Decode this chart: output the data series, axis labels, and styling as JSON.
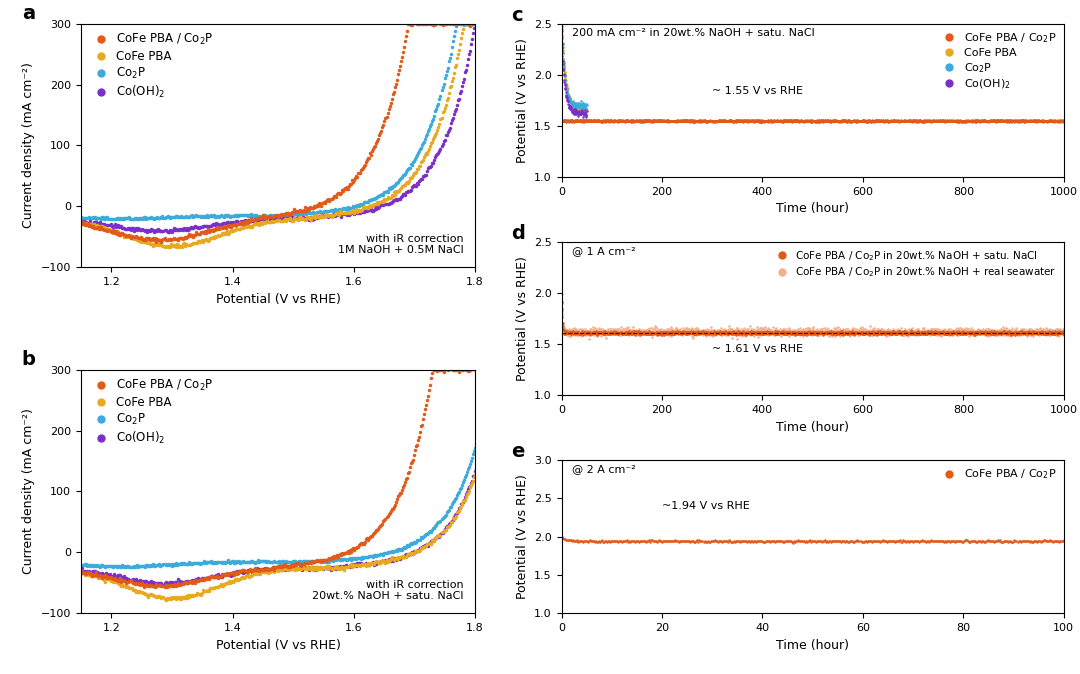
{
  "colors": {
    "cofe_pba_co2p": "#E05A1A",
    "cofe_pba": "#E8A820",
    "co2p": "#3AABDB",
    "co_oh2": "#7B2FC9",
    "cofe_pba_co2p_light": "#F2B090"
  },
  "panel_a": {
    "label": "a",
    "xlabel": "Potential (V vs RHE)",
    "ylabel": "Current density (mA cm⁻²)",
    "xlim": [
      1.15,
      1.8
    ],
    "ylim": [
      -100,
      300
    ],
    "yticks": [
      -100,
      0,
      100,
      200,
      300
    ],
    "xticks": [
      1.2,
      1.4,
      1.6,
      1.8
    ],
    "annotation": "with iR correction\n1M NaOH + 0.5M NaCl"
  },
  "panel_b": {
    "label": "b",
    "xlabel": "Potential (V vs RHE)",
    "ylabel": "Current density (mA cm⁻²)",
    "xlim": [
      1.15,
      1.8
    ],
    "ylim": [
      -100,
      300
    ],
    "yticks": [
      -100,
      0,
      100,
      200,
      300
    ],
    "xticks": [
      1.2,
      1.4,
      1.6,
      1.8
    ],
    "annotation": "with iR correction\n20wt.% NaOH + satu. NaCl"
  },
  "panel_c": {
    "label": "c",
    "xlabel": "Time (hour)",
    "ylabel": "Potential (V vs RHE)",
    "xlim": [
      0,
      1000
    ],
    "ylim": [
      1.0,
      2.5
    ],
    "yticks": [
      1.0,
      1.5,
      2.0,
      2.5
    ],
    "xticks": [
      0,
      200,
      400,
      600,
      800,
      1000
    ],
    "annotation": "200 mA cm⁻² in 20wt.% NaOH + satu. NaCl",
    "hline": 1.55,
    "hline_label": "~ 1.55 V vs RHE"
  },
  "panel_d": {
    "label": "d",
    "xlabel": "Time (hour)",
    "ylabel": "Potential (V vs RHE)",
    "xlim": [
      0,
      1000
    ],
    "ylim": [
      1.0,
      2.5
    ],
    "yticks": [
      1.0,
      1.5,
      2.0,
      2.5
    ],
    "xticks": [
      0,
      200,
      400,
      600,
      800,
      1000
    ],
    "annotation": "@ 1 A cm⁻²",
    "hline": 1.61,
    "hline_label": "~ 1.61 V vs RHE"
  },
  "panel_e": {
    "label": "e",
    "xlabel": "Time (hour)",
    "ylabel": "Potential (V vs RHE)",
    "xlim": [
      0,
      100
    ],
    "ylim": [
      1.0,
      3.0
    ],
    "yticks": [
      1.0,
      1.5,
      2.0,
      2.5,
      3.0
    ],
    "xticks": [
      0,
      20,
      40,
      60,
      80,
      100
    ],
    "annotation": "@ 2 A cm⁻²",
    "hline": 1.94,
    "hline_label": "~1.94 V vs RHE"
  }
}
